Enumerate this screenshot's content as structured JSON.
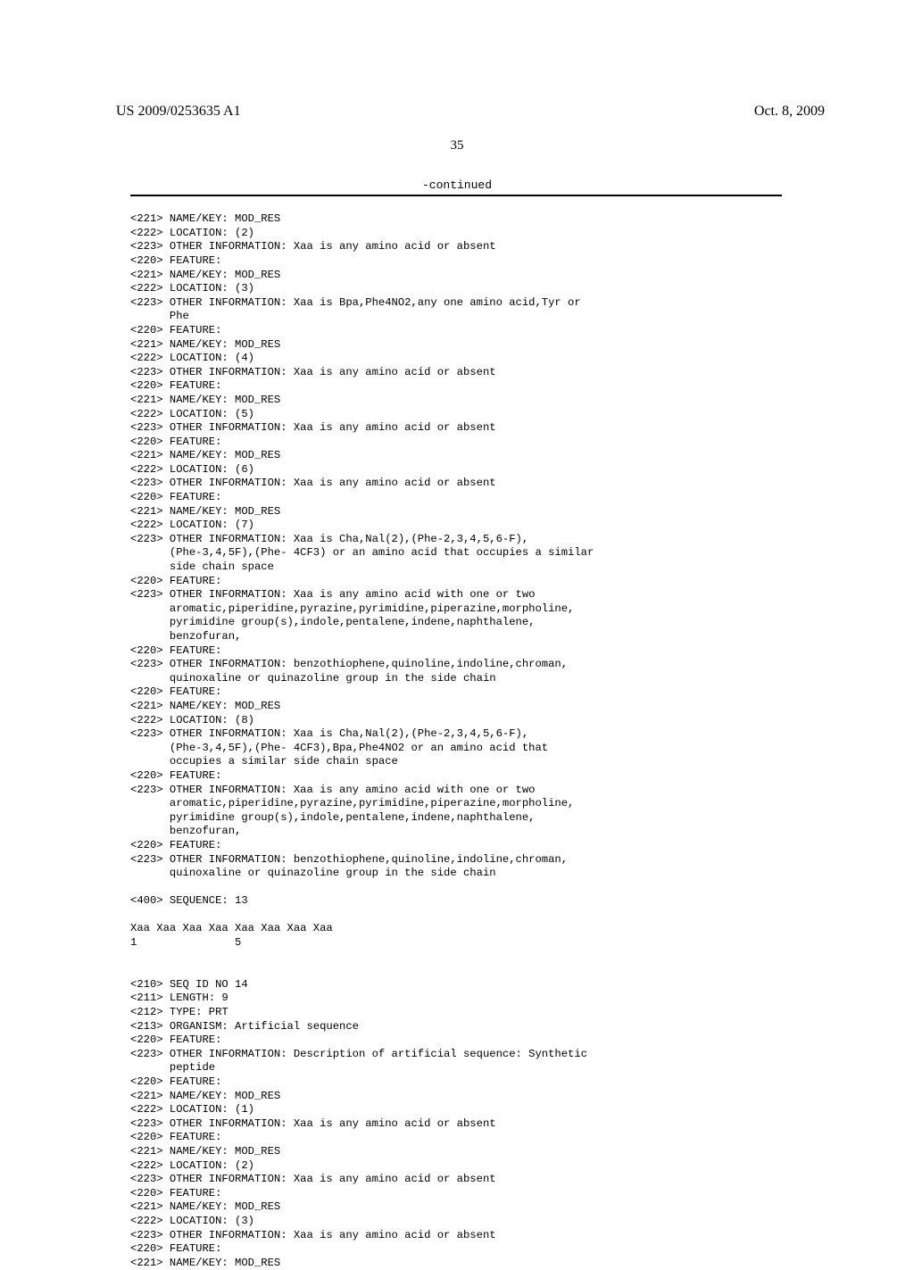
{
  "header": {
    "left": "US 2009/0253635 A1",
    "right": "Oct. 8, 2009"
  },
  "page_number": "35",
  "continued_label": "-continued",
  "listing_lines": [
    "<221> NAME/KEY: MOD_RES",
    "<222> LOCATION: (2)",
    "<223> OTHER INFORMATION: Xaa is any amino acid or absent",
    "<220> FEATURE:",
    "<221> NAME/KEY: MOD_RES",
    "<222> LOCATION: (3)",
    "<223> OTHER INFORMATION: Xaa is Bpa,Phe4NO2,any one amino acid,Tyr or",
    "      Phe",
    "<220> FEATURE:",
    "<221> NAME/KEY: MOD_RES",
    "<222> LOCATION: (4)",
    "<223> OTHER INFORMATION: Xaa is any amino acid or absent",
    "<220> FEATURE:",
    "<221> NAME/KEY: MOD_RES",
    "<222> LOCATION: (5)",
    "<223> OTHER INFORMATION: Xaa is any amino acid or absent",
    "<220> FEATURE:",
    "<221> NAME/KEY: MOD_RES",
    "<222> LOCATION: (6)",
    "<223> OTHER INFORMATION: Xaa is any amino acid or absent",
    "<220> FEATURE:",
    "<221> NAME/KEY: MOD_RES",
    "<222> LOCATION: (7)",
    "<223> OTHER INFORMATION: Xaa is Cha,Nal(2),(Phe-2,3,4,5,6-F),",
    "      (Phe-3,4,5F),(Phe- 4CF3) or an amino acid that occupies a similar",
    "      side chain space",
    "<220> FEATURE:",
    "<223> OTHER INFORMATION: Xaa is any amino acid with one or two",
    "      aromatic,piperidine,pyrazine,pyrimidine,piperazine,morpholine,",
    "      pyrimidine group(s),indole,pentalene,indene,naphthalene,",
    "      benzofuran,",
    "<220> FEATURE:",
    "<223> OTHER INFORMATION: benzothiophene,quinoline,indoline,chroman,",
    "      quinoxaline or quinazoline group in the side chain",
    "<220> FEATURE:",
    "<221> NAME/KEY: MOD_RES",
    "<222> LOCATION: (8)",
    "<223> OTHER INFORMATION: Xaa is Cha,Nal(2),(Phe-2,3,4,5,6-F),",
    "      (Phe-3,4,5F),(Phe- 4CF3),Bpa,Phe4NO2 or an amino acid that",
    "      occupies a similar side chain space",
    "<220> FEATURE:",
    "<223> OTHER INFORMATION: Xaa is any amino acid with one or two",
    "      aromatic,piperidine,pyrazine,pyrimidine,piperazine,morpholine,",
    "      pyrimidine group(s),indole,pentalene,indene,naphthalene,",
    "      benzofuran,",
    "<220> FEATURE:",
    "<223> OTHER INFORMATION: benzothiophene,quinoline,indoline,chroman,",
    "      quinoxaline or quinazoline group in the side chain",
    "",
    "<400> SEQUENCE: 13",
    "",
    "Xaa Xaa Xaa Xaa Xaa Xaa Xaa Xaa",
    "1               5",
    "",
    "",
    "<210> SEQ ID NO 14",
    "<211> LENGTH: 9",
    "<212> TYPE: PRT",
    "<213> ORGANISM: Artificial sequence",
    "<220> FEATURE:",
    "<223> OTHER INFORMATION: Description of artificial sequence: Synthetic",
    "      peptide",
    "<220> FEATURE:",
    "<221> NAME/KEY: MOD_RES",
    "<222> LOCATION: (1)",
    "<223> OTHER INFORMATION: Xaa is any amino acid or absent",
    "<220> FEATURE:",
    "<221> NAME/KEY: MOD_RES",
    "<222> LOCATION: (2)",
    "<223> OTHER INFORMATION: Xaa is any amino acid or absent",
    "<220> FEATURE:",
    "<221> NAME/KEY: MOD_RES",
    "<222> LOCATION: (3)",
    "<223> OTHER INFORMATION: Xaa is any amino acid or absent",
    "<220> FEATURE:",
    "<221> NAME/KEY: MOD_RES"
  ]
}
